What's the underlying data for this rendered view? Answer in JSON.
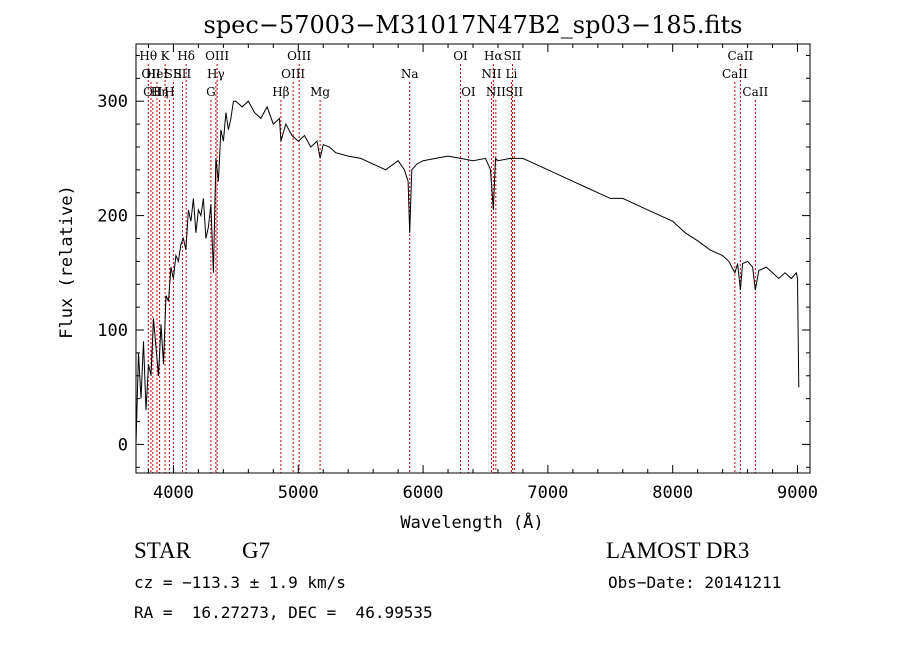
{
  "chart_data": {
    "type": "line",
    "title": "spec−57003−M31017N47B2_sp03−185.fits",
    "xlabel": "Wavelength (Å)",
    "ylabel": "Flux (relative)",
    "xlim": [
      3700,
      9100
    ],
    "ylim": [
      -25,
      350
    ],
    "xticks": [
      4000,
      5000,
      6000,
      7000,
      8000,
      9000
    ],
    "yticks": [
      0,
      100,
      200,
      300
    ],
    "line_color": "#000000",
    "marker_color": "#cc0000",
    "spectrum": {
      "x": [
        3700,
        3720,
        3740,
        3760,
        3780,
        3800,
        3820,
        3840,
        3860,
        3880,
        3900,
        3920,
        3940,
        3960,
        3980,
        4000,
        4020,
        4040,
        4060,
        4080,
        4100,
        4120,
        4140,
        4160,
        4180,
        4200,
        4220,
        4240,
        4260,
        4280,
        4300,
        4320,
        4340,
        4360,
        4380,
        4400,
        4420,
        4440,
        4460,
        4480,
        4500,
        4550,
        4600,
        4650,
        4700,
        4750,
        4800,
        4850,
        4861,
        4900,
        4950,
        5000,
        5050,
        5100,
        5150,
        5175,
        5200,
        5250,
        5300,
        5400,
        5500,
        5600,
        5700,
        5800,
        5850,
        5880,
        5893,
        5910,
        5950,
        6000,
        6100,
        6200,
        6300,
        6400,
        6500,
        6540,
        6563,
        6580,
        6600,
        6700,
        6800,
        6900,
        7000,
        7100,
        7200,
        7300,
        7400,
        7500,
        7600,
        7700,
        7800,
        7900,
        8000,
        8100,
        8200,
        8300,
        8400,
        8450,
        8498,
        8520,
        8542,
        8560,
        8600,
        8640,
        8662,
        8690,
        8750,
        8800,
        8850,
        8900,
        8950,
        8990,
        9000,
        9010
      ],
      "y": [
        0,
        80,
        40,
        90,
        30,
        70,
        60,
        110,
        85,
        60,
        105,
        70,
        130,
        125,
        155,
        145,
        165,
        160,
        175,
        180,
        170,
        205,
        195,
        215,
        185,
        205,
        200,
        215,
        180,
        190,
        210,
        150,
        250,
        230,
        275,
        265,
        290,
        275,
        285,
        300,
        300,
        295,
        300,
        290,
        285,
        295,
        280,
        285,
        265,
        280,
        270,
        265,
        270,
        260,
        265,
        250,
        262,
        260,
        255,
        252,
        250,
        245,
        240,
        248,
        240,
        230,
        185,
        240,
        245,
        248,
        250,
        252,
        250,
        248,
        250,
        240,
        205,
        250,
        248,
        250,
        250,
        245,
        240,
        235,
        230,
        225,
        220,
        215,
        215,
        210,
        205,
        200,
        195,
        185,
        178,
        170,
        165,
        160,
        150,
        158,
        135,
        158,
        160,
        155,
        135,
        152,
        155,
        150,
        145,
        150,
        145,
        150,
        145,
        50
      ],
      "baseline": [
        3700,
        0
      ]
    },
    "line_markers": [
      {
        "x": 3798,
        "row": 1,
        "label": "Hθ"
      },
      {
        "x": 3820,
        "row": 2,
        "label": "OII"
      },
      {
        "x": 3835,
        "row": 3,
        "label": "OII"
      },
      {
        "x": 3868,
        "row": 2,
        "label": "HeI"
      },
      {
        "x": 3889,
        "row": 3,
        "label": "Hη"
      },
      {
        "x": 3933,
        "row": 1,
        "label": "K"
      },
      {
        "x": 3968,
        "row": 3,
        "label": "H"
      },
      {
        "x": 4000,
        "row": 2,
        "label": "SII"
      },
      {
        "x": 4102,
        "row": 1,
        "label": "Hδ"
      },
      {
        "x": 4072,
        "row": 2,
        "label": "SII"
      },
      {
        "x": 4300,
        "row": 3,
        "label": "G"
      },
      {
        "x": 4340,
        "row": 2,
        "label": "Hγ"
      },
      {
        "x": 4350,
        "row": 1,
        "label": "OIII"
      },
      {
        "x": 4861,
        "row": 3,
        "label": "Hβ"
      },
      {
        "x": 4959,
        "row": 2,
        "label": "OIII"
      },
      {
        "x": 5007,
        "row": 1,
        "label": "OIII"
      },
      {
        "x": 5175,
        "row": 3,
        "label": "Mg"
      },
      {
        "x": 5893,
        "row": 2,
        "label": "Na"
      },
      {
        "x": 6300,
        "row": 1,
        "label": "OI"
      },
      {
        "x": 6363,
        "row": 3,
        "label": "OI"
      },
      {
        "x": 6548,
        "row": 2,
        "label": "NII"
      },
      {
        "x": 6563,
        "row": 1,
        "label": "Hα"
      },
      {
        "x": 6583,
        "row": 3,
        "label": "NII"
      },
      {
        "x": 6708,
        "row": 2,
        "label": "Li"
      },
      {
        "x": 6716,
        "row": 1,
        "label": "SII"
      },
      {
        "x": 6731,
        "row": 3,
        "label": "SII"
      },
      {
        "x": 8498,
        "row": 2,
        "label": "CaII"
      },
      {
        "x": 8542,
        "row": 1,
        "label": "CaII"
      },
      {
        "x": 8662,
        "row": 3,
        "label": "CaII"
      }
    ]
  },
  "info": {
    "object_class": "STAR",
    "subclass": "G7",
    "survey": "LAMOST DR3",
    "cz": "cz = −113.3 ± 1.9 km/s",
    "obs_date": "Obs−Date: 20141211",
    "coords": "RA =  16.27273, DEC =  46.99535"
  }
}
